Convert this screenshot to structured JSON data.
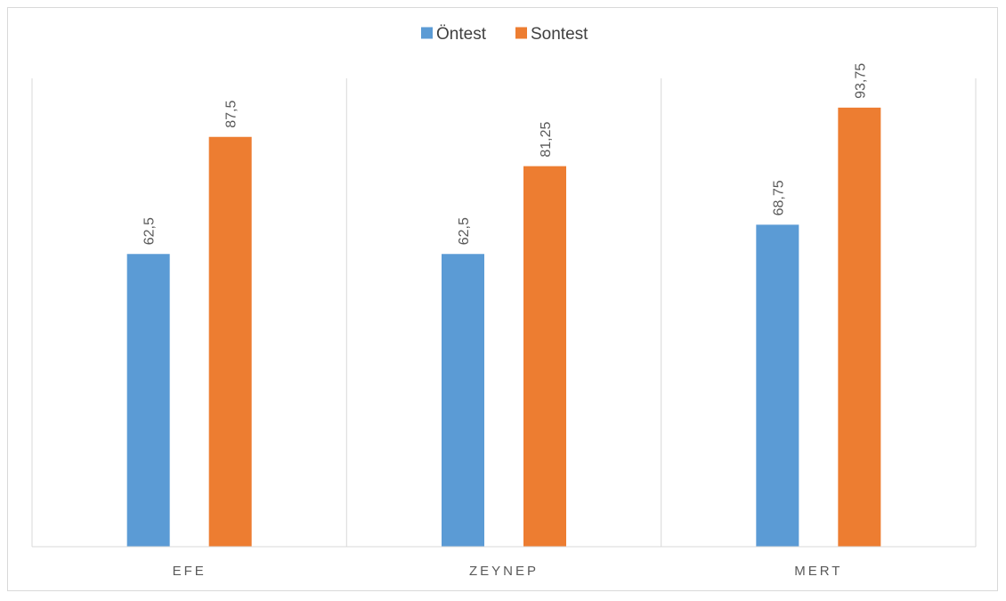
{
  "chart_data": {
    "type": "bar",
    "categories": [
      "EFE",
      "ZEYNEP",
      "MERT"
    ],
    "series": [
      {
        "name": "Öntest",
        "color": "#5b9bd5",
        "values": [
          62.5,
          62.5,
          68.75
        ],
        "labels": [
          "62,5",
          "62,5",
          "68,75"
        ]
      },
      {
        "name": "Sontest",
        "color": "#ed7d31",
        "values": [
          87.5,
          81.25,
          93.75
        ],
        "labels": [
          "87,5",
          "81,25",
          "93,75"
        ]
      }
    ],
    "title": "",
    "xlabel": "",
    "ylabel": "",
    "ylim": [
      0,
      100
    ],
    "legend_position": "top",
    "gridlines": "vertical category separators",
    "y_axis_visible": false
  }
}
